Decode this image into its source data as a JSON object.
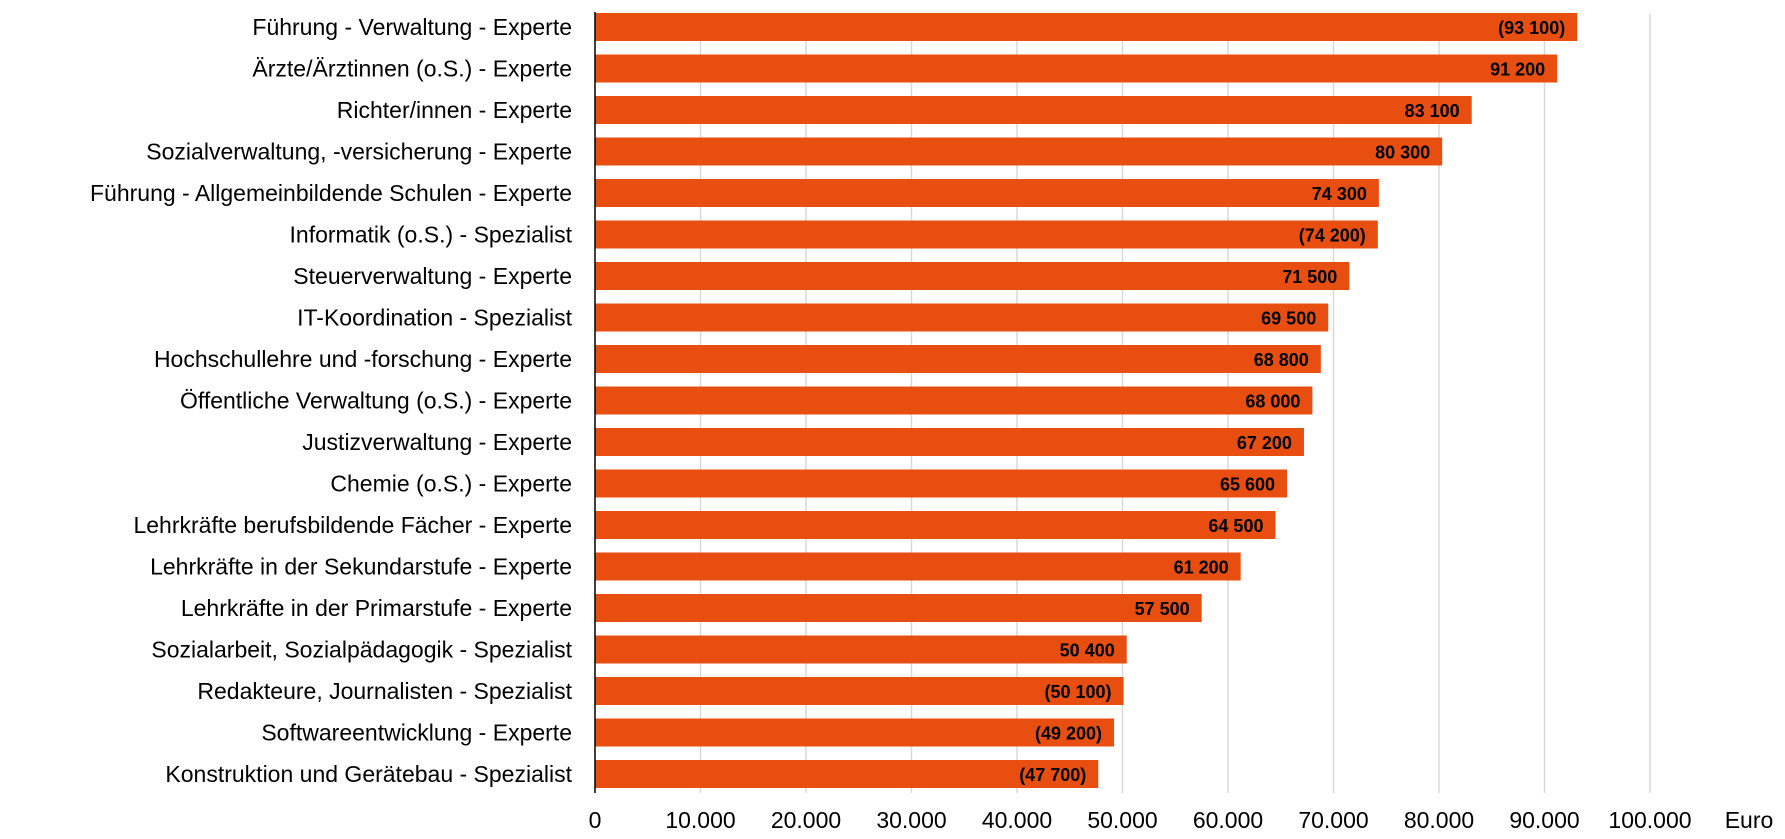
{
  "chart_data": {
    "type": "bar",
    "orientation": "horizontal",
    "title": "",
    "xlabel": "",
    "ylabel": "",
    "unit": "Euro",
    "xlim": [
      0,
      100000
    ],
    "grid": true,
    "bar_color": "#E84E10",
    "ticks": [
      {
        "value": 0,
        "label": "0"
      },
      {
        "value": 10000,
        "label": "10.000"
      },
      {
        "value": 20000,
        "label": "20.000"
      },
      {
        "value": 30000,
        "label": "30.000"
      },
      {
        "value": 40000,
        "label": "40.000"
      },
      {
        "value": 50000,
        "label": "50.000"
      },
      {
        "value": 60000,
        "label": "60.000"
      },
      {
        "value": 70000,
        "label": "70.000"
      },
      {
        "value": 80000,
        "label": "80.000"
      },
      {
        "value": 90000,
        "label": "90.000"
      },
      {
        "value": 100000,
        "label": "100.000"
      }
    ],
    "categories": [
      "Führung - Verwaltung - Experte",
      "Ärzte/Ärztinnen (o.S.) - Experte",
      "Richter/innen - Experte",
      "Sozialverwaltung, -versicherung - Experte",
      "Führung - Allgemeinbildende Schulen - Experte",
      "Informatik (o.S.) - Spezialist",
      "Steuerverwaltung - Experte",
      "IT-Koordination - Spezialist",
      "Hochschullehre und -forschung - Experte",
      "Öffentliche Verwaltung (o.S.) - Experte",
      "Justizverwaltung - Experte",
      "Chemie (o.S.) - Experte",
      "Lehrkräfte berufsbildende Fächer - Experte",
      "Lehrkräfte in der Sekundarstufe - Experte",
      "Lehrkräfte in der Primarstufe - Experte",
      "Sozialarbeit, Sozialpädagogik - Spezialist",
      "Redakteure, Journalisten - Spezialist",
      "Softwareentwicklung - Experte",
      "Konstruktion und Gerätebau - Spezialist"
    ],
    "values": [
      93100,
      91200,
      83100,
      80300,
      74300,
      74200,
      71500,
      69500,
      68800,
      68000,
      67200,
      65600,
      64500,
      61200,
      57500,
      50400,
      50100,
      49200,
      47700
    ],
    "data_labels": [
      "(93 100)",
      "91 200",
      "83 100",
      "80 300",
      "74 300",
      "(74 200)",
      "71 500",
      "69 500",
      "68 800",
      "68 000",
      "67 200",
      "65 600",
      "64 500",
      "61 200",
      "57 500",
      "50 400",
      "(50 100)",
      "(49 200)",
      "(47 700)"
    ]
  }
}
